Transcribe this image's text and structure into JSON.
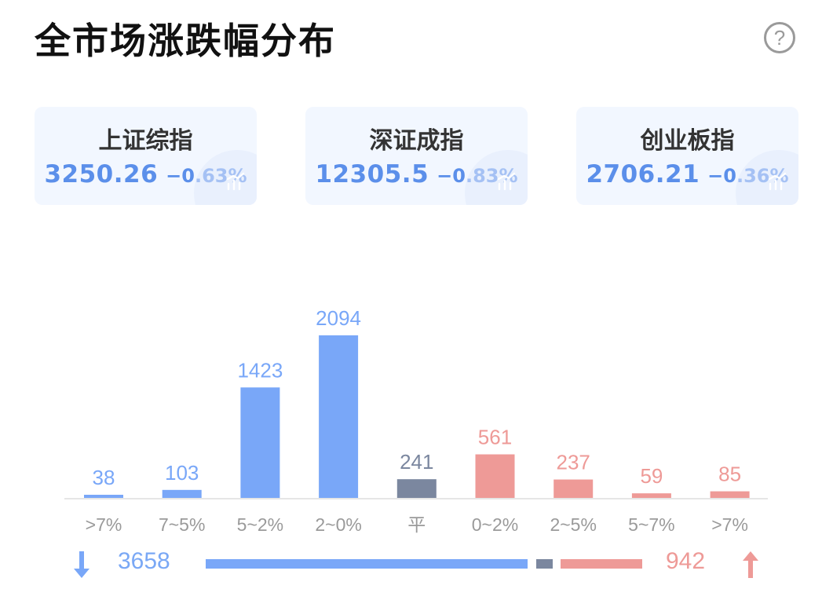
{
  "header": {
    "title": "全市场涨跌幅分布",
    "help_symbol": "?"
  },
  "indices": [
    {
      "name": "上证综指",
      "price": "3250.26",
      "change": "−0.63%"
    },
    {
      "name": "深证成指",
      "price": "12305.5",
      "change": "−0.83%"
    },
    {
      "name": "创业板指",
      "price": "2706.21",
      "change": "−0.36%"
    }
  ],
  "colors": {
    "down": "#79a7f8",
    "flat": "#7b879f",
    "up": "#ee9a97",
    "axis": "#e6e6e6",
    "tick": "#9a9a9a"
  },
  "chart_data": {
    "type": "bar",
    "categories": [
      ">7%",
      "7~5%",
      "5~2%",
      "2~0%",
      "平",
      "0~2%",
      "2~5%",
      "5~7%",
      ">7%"
    ],
    "values": [
      38,
      103,
      1423,
      2094,
      241,
      561,
      237,
      59,
      85
    ],
    "groups": [
      "down",
      "down",
      "down",
      "down",
      "flat",
      "up",
      "up",
      "up",
      "up"
    ],
    "title": "",
    "xlabel": "",
    "ylabel": "",
    "ylim": [
      0,
      2094
    ],
    "grid": false
  },
  "totals": {
    "down": "3658",
    "flat": 241,
    "up": "942"
  }
}
